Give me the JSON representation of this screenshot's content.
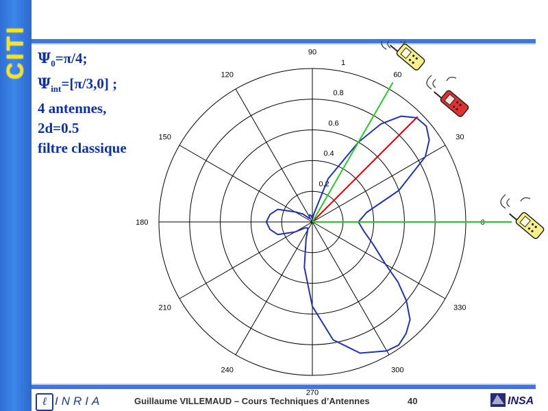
{
  "sidebar": {
    "logo_text": "CITI"
  },
  "params": {
    "psi_symbol": "Ψ",
    "line1_sub": "0",
    "line1_rest": "=π/4;",
    "line2_sub": "int",
    "line2_rest": "=[π/3,0] ;",
    "line3": "4 antennes,",
    "line4": "2d=0.5",
    "line5": "filtre classique"
  },
  "footer": {
    "org": "INRIA",
    "text": "Guillaume VILLEMAUD – Cours Techniques d’Antennes",
    "page": "40"
  },
  "colors": {
    "sidebar": "#3b78d8",
    "text_blue": "#0a2fb0",
    "pattern": "#1f2fbf",
    "steering_line": "#dd0000",
    "direction_lines": "#22cc22"
  },
  "chart_data": {
    "type": "polar",
    "angle_ticks": [
      "0",
      "30",
      "60",
      "90",
      "120",
      "150",
      "180",
      "210",
      "240",
      "270",
      "300",
      "330"
    ],
    "radius_ticks": [
      "0.2",
      "0.4",
      "0.6",
      "0.8",
      "1"
    ],
    "rlim": [
      0,
      1
    ],
    "series": [
      {
        "style": "pattern",
        "theta_deg": [
          0,
          10,
          20,
          30,
          35,
          40,
          45,
          50,
          55,
          60,
          70,
          80,
          90,
          100,
          110,
          120,
          130,
          140,
          150,
          160,
          170,
          180,
          190,
          200,
          210,
          220,
          230,
          240,
          250,
          260,
          270,
          280,
          290,
          300,
          305,
          310,
          315,
          320,
          325,
          330,
          340,
          350,
          360
        ],
        "r": [
          0.3,
          0.36,
          0.6,
          0.85,
          0.93,
          0.97,
          0.96,
          0.9,
          0.78,
          0.6,
          0.3,
          0.05,
          0.02,
          0.04,
          0.05,
          0.04,
          0.03,
          0.08,
          0.13,
          0.24,
          0.28,
          0.3,
          0.28,
          0.24,
          0.13,
          0.06,
          0.05,
          0.06,
          0.12,
          0.3,
          0.55,
          0.78,
          0.91,
          0.97,
          0.98,
          0.95,
          0.9,
          0.8,
          0.68,
          0.55,
          0.42,
          0.34,
          0.3
        ]
      },
      {
        "style": "direction",
        "theta_deg": 45,
        "r": 0.97
      },
      {
        "style": "direction-green",
        "theta_deg": 60,
        "r": 1.05
      },
      {
        "style": "direction-green",
        "theta_deg": 0,
        "r": 1.3
      }
    ]
  }
}
